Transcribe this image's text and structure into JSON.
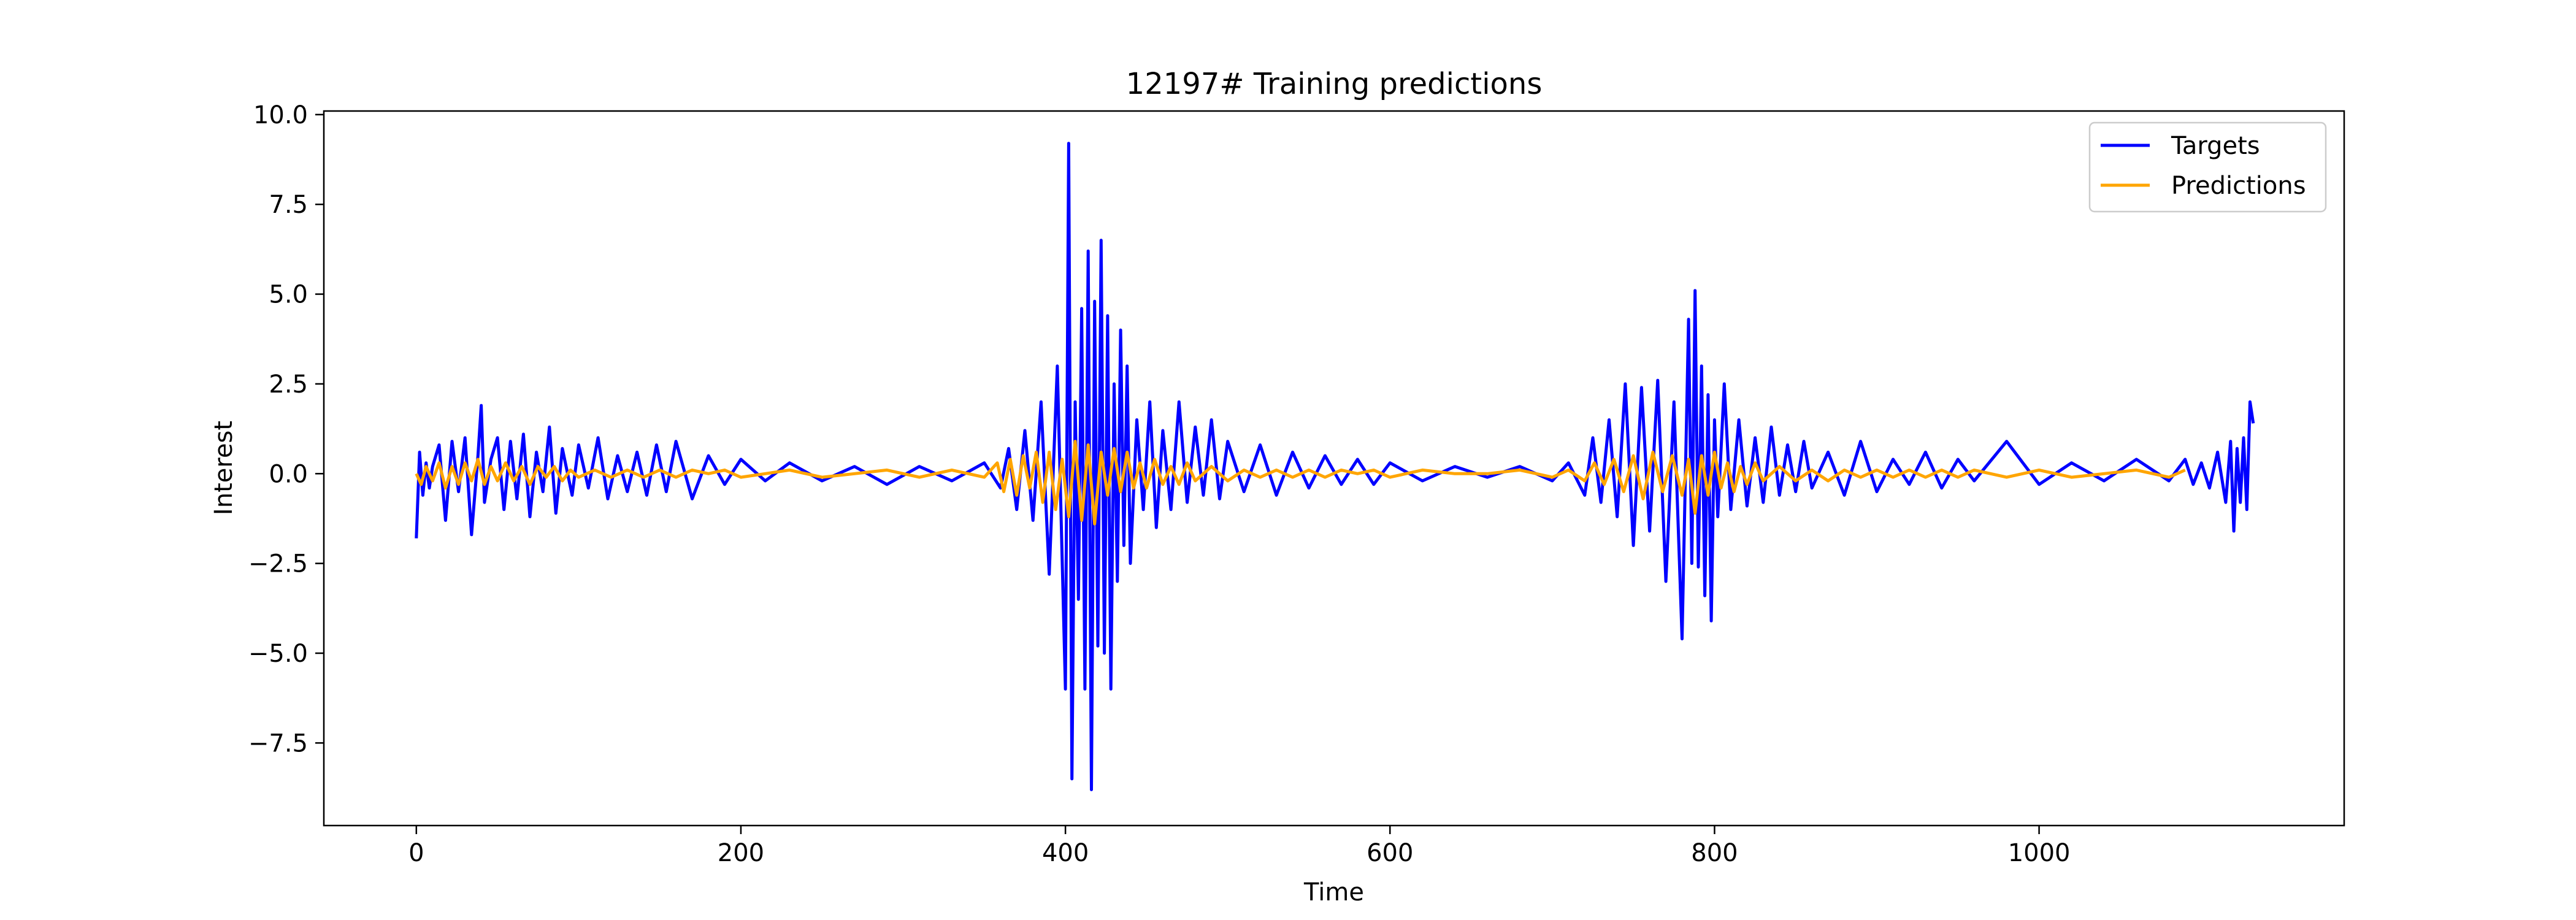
{
  "chart_data": {
    "type": "line",
    "title": "12197# Training predictions",
    "xlabel": "Time",
    "ylabel": "Interest",
    "xlim": [
      -57,
      1188
    ],
    "ylim": [
      -9.8,
      10.1
    ],
    "xticks": [
      0,
      200,
      400,
      600,
      800,
      1000
    ],
    "xtick_labels": [
      "0",
      "200",
      "400",
      "600",
      "800",
      "1000"
    ],
    "yticks": [
      -7.5,
      -5.0,
      -2.5,
      0.0,
      2.5,
      5.0,
      7.5,
      10.0
    ],
    "ytick_labels": [
      "−7.5",
      "−5.0",
      "−2.5",
      "0.0",
      "2.5",
      "5.0",
      "7.5",
      "10.0"
    ],
    "grid": false,
    "legend_position": "top-right",
    "series": [
      {
        "name": "Targets",
        "color": "#0000ff",
        "x": [
          0,
          2,
          4,
          6,
          8,
          10,
          14,
          18,
          22,
          26,
          30,
          34,
          38,
          40,
          42,
          46,
          50,
          54,
          58,
          62,
          66,
          70,
          74,
          78,
          82,
          86,
          90,
          96,
          100,
          106,
          112,
          118,
          124,
          130,
          136,
          142,
          148,
          154,
          160,
          170,
          180,
          190,
          200,
          215,
          230,
          250,
          270,
          290,
          310,
          330,
          350,
          360,
          365,
          370,
          375,
          380,
          385,
          390,
          395,
          400,
          402,
          404,
          406,
          408,
          410,
          412,
          414,
          416,
          418,
          420,
          422,
          424,
          426,
          428,
          430,
          432,
          434,
          436,
          438,
          440,
          444,
          448,
          452,
          456,
          460,
          465,
          470,
          475,
          480,
          485,
          490,
          495,
          500,
          510,
          520,
          530,
          540,
          550,
          560,
          570,
          580,
          590,
          600,
          620,
          640,
          660,
          680,
          700,
          710,
          720,
          725,
          730,
          735,
          740,
          745,
          750,
          755,
          760,
          765,
          770,
          775,
          780,
          784,
          786,
          788,
          790,
          792,
          794,
          796,
          798,
          800,
          802,
          806,
          810,
          815,
          820,
          825,
          830,
          835,
          840,
          845,
          850,
          855,
          860,
          870,
          880,
          890,
          900,
          910,
          920,
          930,
          940,
          950,
          960,
          980,
          1000,
          1020,
          1040,
          1060,
          1080,
          1090,
          1095,
          1100,
          1105,
          1110,
          1115,
          1118,
          1120,
          1122,
          1124,
          1126,
          1128,
          1130,
          1132
        ],
        "y": [
          -1.8,
          0.6,
          -0.6,
          0.3,
          -0.4,
          0.2,
          0.8,
          -1.3,
          0.9,
          -0.5,
          1.0,
          -1.7,
          0.5,
          1.9,
          -0.8,
          0.4,
          1.0,
          -1.0,
          0.9,
          -0.7,
          1.1,
          -1.2,
          0.6,
          -0.5,
          1.3,
          -1.1,
          0.7,
          -0.6,
          0.8,
          -0.4,
          1.0,
          -0.7,
          0.5,
          -0.5,
          0.6,
          -0.6,
          0.8,
          -0.5,
          0.9,
          -0.7,
          0.5,
          -0.3,
          0.4,
          -0.2,
          0.3,
          -0.2,
          0.2,
          -0.3,
          0.2,
          -0.2,
          0.3,
          -0.4,
          0.7,
          -1.0,
          1.2,
          -1.3,
          2.0,
          -2.8,
          3.0,
          -6.0,
          9.2,
          -8.5,
          2.0,
          -3.5,
          4.6,
          -6.0,
          6.2,
          -8.8,
          4.8,
          -4.8,
          6.5,
          -5.0,
          4.4,
          -6.0,
          2.5,
          -3.0,
          4.0,
          -2.0,
          3.0,
          -2.5,
          1.5,
          -1.0,
          2.0,
          -1.5,
          1.2,
          -1.0,
          2.0,
          -0.8,
          1.3,
          -0.6,
          1.5,
          -0.7,
          0.9,
          -0.5,
          0.8,
          -0.6,
          0.6,
          -0.4,
          0.5,
          -0.3,
          0.4,
          -0.3,
          0.3,
          -0.2,
          0.2,
          -0.1,
          0.2,
          -0.2,
          0.3,
          -0.6,
          1.0,
          -0.8,
          1.5,
          -1.2,
          2.5,
          -2.0,
          2.4,
          -1.6,
          2.6,
          -3.0,
          2.0,
          -4.6,
          4.3,
          -2.5,
          5.1,
          -2.6,
          3.0,
          -3.4,
          2.2,
          -4.1,
          1.5,
          -1.2,
          2.5,
          -1.0,
          1.5,
          -0.9,
          1.0,
          -0.8,
          1.3,
          -0.6,
          0.8,
          -0.5,
          0.9,
          -0.4,
          0.6,
          -0.6,
          0.9,
          -0.5,
          0.4,
          -0.3,
          0.6,
          -0.4,
          0.4,
          -0.2,
          0.9,
          -0.3,
          0.3,
          -0.2,
          0.4,
          -0.2,
          0.4,
          -0.3,
          0.3,
          -0.4,
          0.6,
          -0.8,
          0.9,
          -1.6,
          0.7,
          -0.8,
          1.0,
          -1.0,
          2.0,
          1.4
        ]
      },
      {
        "name": "Predictions",
        "color": "#ffa500",
        "x": [
          0,
          3,
          6,
          10,
          14,
          18,
          22,
          26,
          30,
          34,
          38,
          42,
          46,
          50,
          55,
          60,
          65,
          70,
          75,
          80,
          85,
          90,
          95,
          100,
          110,
          120,
          130,
          140,
          150,
          160,
          170,
          180,
          190,
          200,
          215,
          230,
          250,
          270,
          290,
          310,
          330,
          350,
          358,
          362,
          366,
          370,
          374,
          378,
          382,
          386,
          390,
          394,
          398,
          402,
          406,
          410,
          414,
          418,
          422,
          426,
          430,
          434,
          438,
          442,
          446,
          450,
          455,
          460,
          465,
          470,
          475,
          480,
          490,
          500,
          510,
          520,
          530,
          540,
          550,
          560,
          570,
          580,
          590,
          600,
          620,
          640,
          660,
          680,
          700,
          710,
          720,
          726,
          732,
          738,
          744,
          750,
          756,
          762,
          768,
          774,
          780,
          784,
          788,
          792,
          796,
          800,
          804,
          808,
          812,
          816,
          820,
          825,
          830,
          840,
          850,
          860,
          870,
          880,
          890,
          900,
          910,
          920,
          930,
          940,
          950,
          960,
          980,
          1000,
          1020,
          1040,
          1060,
          1080,
          1090
        ],
        "y": [
          0.0,
          -0.3,
          0.2,
          -0.2,
          0.3,
          -0.4,
          0.2,
          -0.3,
          0.3,
          -0.2,
          0.4,
          -0.3,
          0.2,
          -0.2,
          0.3,
          -0.2,
          0.2,
          -0.3,
          0.2,
          -0.1,
          0.2,
          -0.2,
          0.1,
          -0.1,
          0.1,
          -0.1,
          0.1,
          -0.1,
          0.1,
          -0.1,
          0.1,
          0.0,
          0.1,
          -0.1,
          0.0,
          0.1,
          -0.1,
          0.0,
          0.1,
          -0.1,
          0.1,
          -0.1,
          0.3,
          -0.5,
          0.4,
          -0.6,
          0.5,
          -0.4,
          0.6,
          -0.8,
          0.6,
          -1.0,
          0.4,
          -1.2,
          0.9,
          -1.3,
          0.8,
          -1.4,
          0.6,
          -0.6,
          0.7,
          -0.5,
          0.6,
          -0.4,
          0.3,
          -0.4,
          0.4,
          -0.3,
          0.2,
          -0.3,
          0.3,
          -0.2,
          0.2,
          -0.2,
          0.1,
          -0.1,
          0.1,
          -0.1,
          0.1,
          -0.1,
          0.1,
          0.0,
          0.1,
          -0.1,
          0.1,
          0.0,
          0.0,
          0.1,
          -0.1,
          0.1,
          -0.2,
          0.3,
          -0.3,
          0.4,
          -0.5,
          0.5,
          -0.7,
          0.6,
          -0.5,
          0.5,
          -0.6,
          0.4,
          -1.1,
          0.5,
          -0.6,
          0.6,
          -0.4,
          0.3,
          -0.5,
          0.2,
          -0.3,
          0.3,
          -0.2,
          0.2,
          -0.2,
          0.1,
          -0.2,
          0.1,
          -0.1,
          0.1,
          -0.1,
          0.1,
          -0.1,
          0.1,
          -0.1,
          0.1,
          -0.1,
          0.1,
          -0.1,
          0.0,
          0.1,
          -0.1,
          0.1
        ]
      }
    ]
  }
}
